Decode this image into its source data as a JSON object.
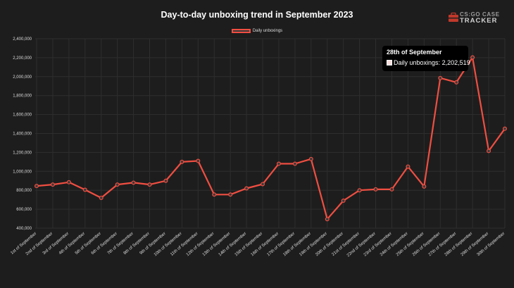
{
  "colors": {
    "line": "#f04e41",
    "grid": "#2e2e2e",
    "background": "#1d1d1d"
  },
  "logo": {
    "line1": "CS:GO CASE",
    "line2": "TRACKER",
    "icon": "case-tracker-logo-icon"
  },
  "chart_data": {
    "type": "line",
    "title": "Day-to-day unboxing trend in September 2023",
    "legend_position": "top-center",
    "grid": true,
    "ylim": [
      400000,
      2400000
    ],
    "yticks": [
      400000,
      600000,
      800000,
      1000000,
      1200000,
      1400000,
      1600000,
      1800000,
      2000000,
      2200000,
      2400000
    ],
    "ytick_labels": [
      "400,000",
      "600,000",
      "800,000",
      "1,000,000",
      "1,200,000",
      "1,400,000",
      "1,600,000",
      "1,800,000",
      "2,000,000",
      "2,200,000",
      "2,400,000"
    ],
    "categories": [
      "1st of September",
      "2nd of September",
      "3rd of September",
      "4th of September",
      "5th of September",
      "6th of September",
      "7th of September",
      "8th of September",
      "9th of September",
      "10th of September",
      "11th of September",
      "12th of September",
      "13th of September",
      "14th of September",
      "15th of September",
      "16th of September",
      "17th of September",
      "18th of September",
      "19th of September",
      "20th of September",
      "21st of September",
      "22nd of September",
      "23rd of September",
      "24th of September",
      "25th of September",
      "26th of September",
      "27th of September",
      "28th of September",
      "29th of September",
      "30th of September"
    ],
    "series": [
      {
        "name": "Daily unboxings",
        "values": [
          845000,
          860000,
          885000,
          805000,
          720000,
          860000,
          880000,
          860000,
          900000,
          1100000,
          1110000,
          755000,
          755000,
          820000,
          865000,
          1080000,
          1080000,
          1130000,
          495000,
          690000,
          800000,
          810000,
          810000,
          1050000,
          840000,
          1985000,
          1940000,
          2202519,
          1215000,
          1450000
        ]
      }
    ],
    "tooltip": {
      "title": "28th of September",
      "series": "Daily unboxings",
      "value_label": "2,202,519",
      "row": "Daily unboxings: 2,202,519"
    }
  }
}
